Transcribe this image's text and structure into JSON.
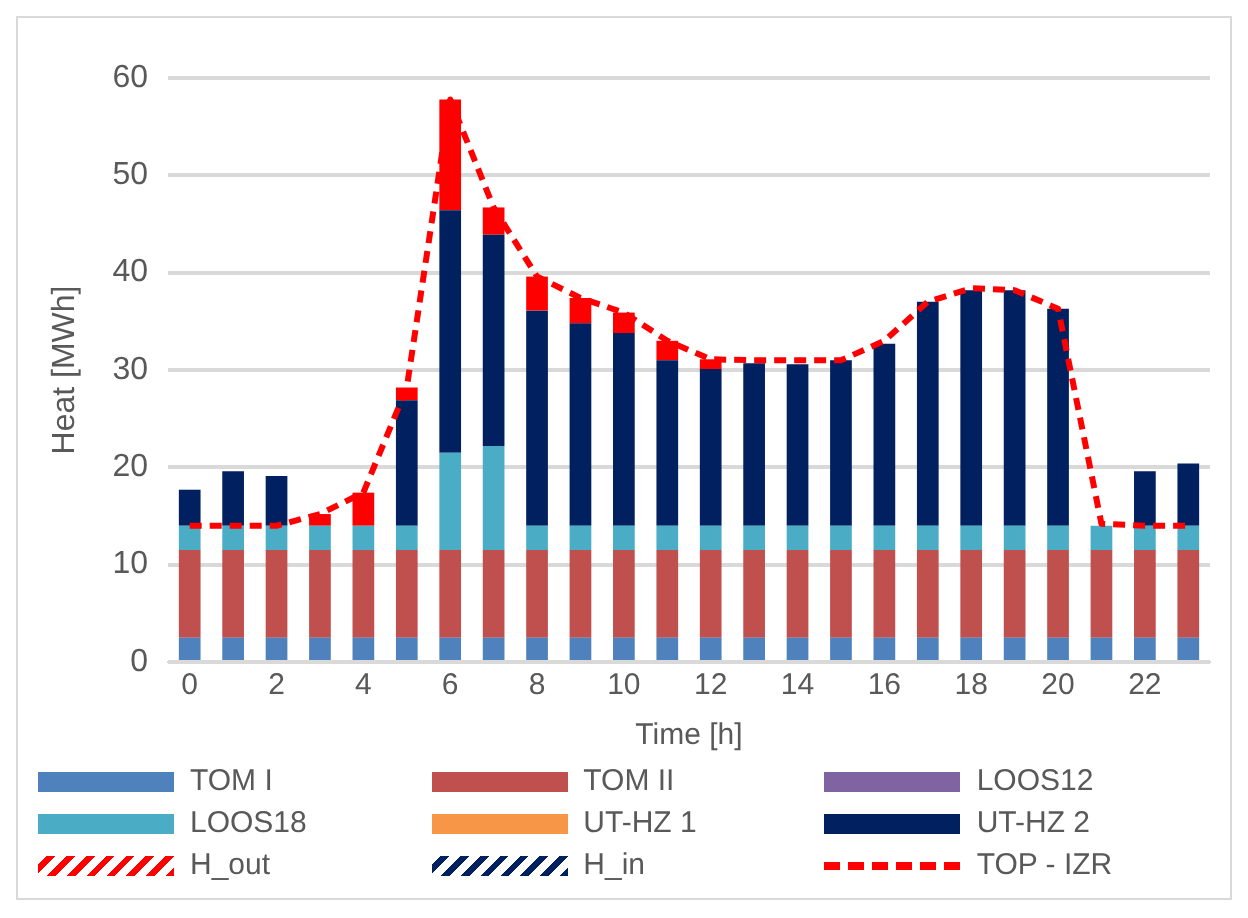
{
  "chart_data": {
    "type": "bar",
    "stacked": true,
    "xlabel": "Time [h]",
    "ylabel": "Heat [MWh]",
    "categories": [
      "0",
      null,
      "2",
      null,
      "4",
      null,
      "6",
      null,
      "8",
      null,
      "10",
      null,
      "12",
      null,
      "14",
      null,
      "16",
      null,
      "18",
      null,
      "20",
      null,
      "22",
      null
    ],
    "ylim": [
      0,
      60
    ],
    "yticks": [
      0,
      10,
      20,
      30,
      40,
      50,
      60
    ],
    "grid": "y",
    "legend": "bottom",
    "series": [
      {
        "name": "TOM I",
        "color": "#4f81bd",
        "values": [
          2.5,
          2.5,
          2.5,
          2.5,
          2.5,
          2.5,
          2.5,
          2.5,
          2.5,
          2.5,
          2.5,
          2.5,
          2.5,
          2.5,
          2.5,
          2.5,
          2.5,
          2.5,
          2.5,
          2.5,
          2.5,
          2.5,
          2.5,
          2.5
        ]
      },
      {
        "name": "TOM II",
        "color": "#c0504d",
        "values": [
          9,
          9,
          9,
          9,
          9,
          9,
          9,
          9,
          9,
          9,
          9,
          9,
          9,
          9,
          9,
          9,
          9,
          9,
          9,
          9,
          9,
          9,
          9,
          9
        ]
      },
      {
        "name": "LOOS12",
        "color": "#8064a2",
        "values": [
          0,
          0,
          0,
          0,
          0,
          0,
          0,
          0,
          0,
          0,
          0,
          0,
          0,
          0,
          0,
          0,
          0,
          0,
          0,
          0,
          0,
          0,
          0,
          0
        ]
      },
      {
        "name": "LOOS18",
        "color": "#4bacc6",
        "values": [
          2.5,
          2.5,
          2.5,
          2.5,
          2.5,
          2.5,
          10,
          10.7,
          2.5,
          2.5,
          2.5,
          2.5,
          2.5,
          2.5,
          2.5,
          2.5,
          2.5,
          2.5,
          2.5,
          2.5,
          2.5,
          2.5,
          2.5,
          2.5
        ]
      },
      {
        "name": "UT-HZ 1",
        "color": "#f79646",
        "values": [
          0,
          0,
          0,
          0,
          0,
          0,
          0,
          0,
          0,
          0,
          0,
          0,
          0,
          0,
          0,
          0,
          0,
          0,
          0,
          0,
          0,
          0,
          0,
          0
        ]
      },
      {
        "name": "UT-HZ 2",
        "color": "#002060",
        "values": [
          0,
          0,
          0,
          0,
          0,
          12.9,
          24.9,
          21.7,
          22.1,
          20.8,
          19.8,
          17,
          16.1,
          16.7,
          16.6,
          17,
          18.7,
          23,
          24.2,
          24.2,
          22.3,
          0,
          0,
          0
        ]
      },
      {
        "name": "H_out",
        "color": "#ff0000",
        "line_style": "dashed",
        "values": [
          0,
          0,
          0,
          1.2,
          3.4,
          1.3,
          11.4,
          2.8,
          3.5,
          2.6,
          2.1,
          2,
          1,
          0,
          0,
          0,
          0,
          0,
          0,
          0,
          0,
          0,
          0,
          0
        ]
      },
      {
        "name": "H_in",
        "color": "#002060",
        "line_style": "dashed",
        "values": [
          3.7,
          5.6,
          5.1,
          0,
          0,
          0,
          0,
          0,
          0,
          0,
          0,
          0,
          0,
          0,
          0,
          0,
          0,
          0,
          0,
          0,
          0,
          0,
          5.6,
          6.4
        ]
      },
      {
        "name": "TOP - IZR",
        "type": "line",
        "color": "#ff0000",
        "line_style": "dashed",
        "marker": "none",
        "values": [
          14,
          14,
          14,
          15.2,
          17.4,
          28.2,
          57.8,
          46.7,
          39.6,
          37.4,
          35.9,
          33,
          31.1,
          31,
          31,
          31,
          33,
          37,
          38.4,
          38.2,
          36.3,
          14.2,
          14,
          14
        ]
      }
    ]
  }
}
